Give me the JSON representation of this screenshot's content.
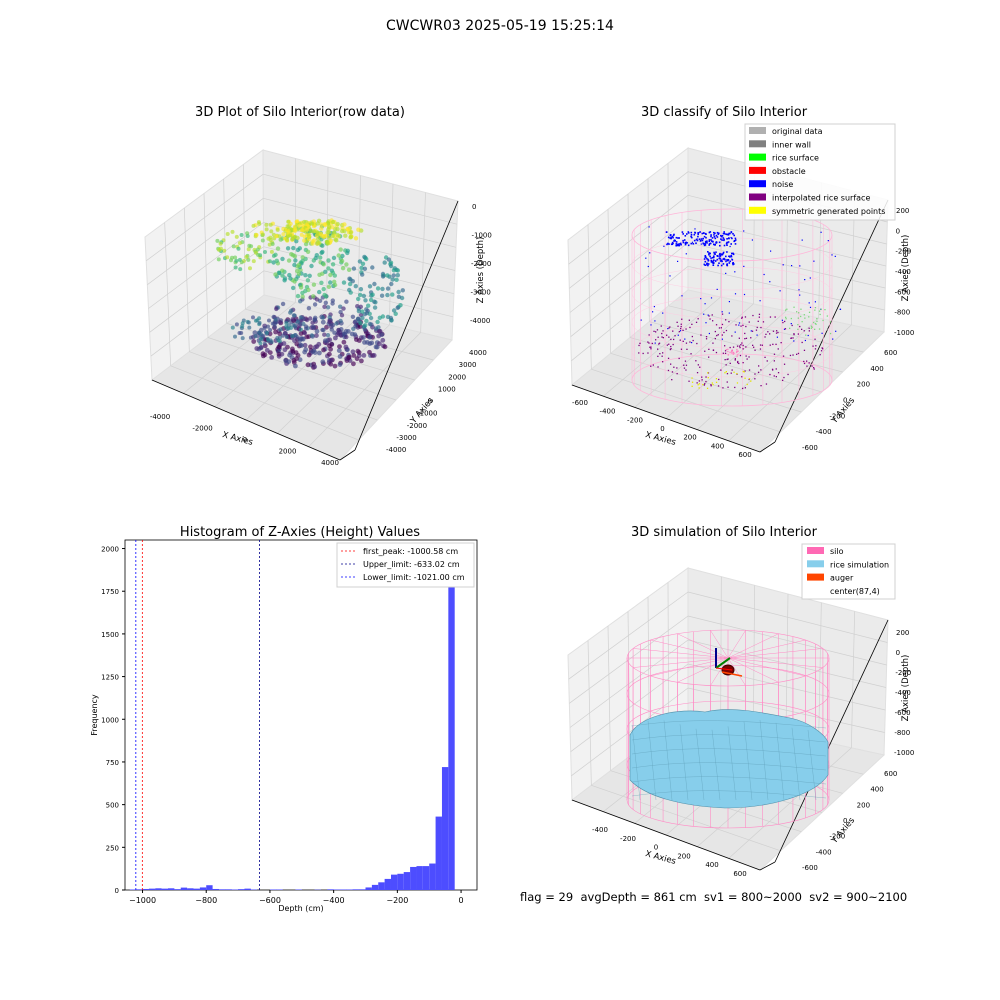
{
  "figure": {
    "suptitle": "CWCWR03 2025-05-19 15:25:14",
    "footer": "flag = 29  avgDepth = 861 cm  sv1 = 800~2000  sv2 = 900~2100"
  },
  "chart_data": [
    {
      "type": "scatter",
      "title": "3D Plot of Silo Interior(row data)",
      "xlabel": "X Axies",
      "ylabel": "Y Axies",
      "zlabel": "Z Axies (Depth)",
      "xlim": [
        -4500,
        4500
      ],
      "ylim": [
        -4500,
        4500
      ],
      "zlim": [
        -4800,
        300
      ],
      "x_ticks": [
        "-4000",
        "-2000",
        "0",
        "2000",
        "4000"
      ],
      "y_ticks": [
        "-4000",
        "-3000",
        "-2000",
        "-1000",
        "0",
        "1000",
        "2000",
        "3000",
        "4000"
      ],
      "z_ticks": [
        "0",
        "-1000",
        "-2000",
        "-3000",
        "-4000"
      ],
      "colormap": "viridis",
      "grid": true
    },
    {
      "type": "scatter",
      "title": "3D classify of Silo Interior",
      "xlabel": "X Axies",
      "ylabel": "Y Axies",
      "zlabel": "Z Axies (Depth)",
      "xlim": [
        -700,
        700
      ],
      "ylim": [
        -700,
        700
      ],
      "zlim": [
        -1100,
        250
      ],
      "x_ticks": [
        "-600",
        "-400",
        "-200",
        "0",
        "200",
        "400",
        "600"
      ],
      "y_ticks": [
        "-600",
        "-400",
        "-200",
        "0",
        "200",
        "400",
        "600"
      ],
      "z_ticks": [
        "200",
        "0",
        "-200",
        "-400",
        "-600",
        "-800",
        "-1000"
      ],
      "legend_position": "top-right",
      "legend": [
        {
          "label": "original data",
          "color": "#b0b0b0"
        },
        {
          "label": "inner wall",
          "color": "#808080"
        },
        {
          "label": "rice surface",
          "color": "#00ff00"
        },
        {
          "label": "obstacle",
          "color": "#ff0000"
        },
        {
          "label": "noise",
          "color": "#0000ff"
        },
        {
          "label": "interpolated rice surface",
          "color": "#800080"
        },
        {
          "label": "symmetric generated points",
          "color": "#ffff00"
        }
      ],
      "grid": true
    },
    {
      "type": "bar",
      "title": "Histogram of Z-Axies (Height) Values",
      "xlabel": "Depth (cm)",
      "ylabel": "Frequency",
      "xlim": [
        -1055,
        50
      ],
      "ylim": [
        0,
        2050
      ],
      "x_ticks": [
        -1000,
        -800,
        -600,
        -400,
        -200,
        0
      ],
      "y_ticks": [
        0,
        250,
        500,
        750,
        1000,
        1250,
        1500,
        1750,
        2000
      ],
      "bin_width": 20,
      "bins": [
        {
          "x": -1040,
          "y": 3
        },
        {
          "x": -1020,
          "y": 4
        },
        {
          "x": -1000,
          "y": 6
        },
        {
          "x": -980,
          "y": 8
        },
        {
          "x": -960,
          "y": 10
        },
        {
          "x": -940,
          "y": 8
        },
        {
          "x": -920,
          "y": 10
        },
        {
          "x": -900,
          "y": 5
        },
        {
          "x": -880,
          "y": 14
        },
        {
          "x": -860,
          "y": 10
        },
        {
          "x": -840,
          "y": 8
        },
        {
          "x": -820,
          "y": 15
        },
        {
          "x": -800,
          "y": 28
        },
        {
          "x": -780,
          "y": 6
        },
        {
          "x": -760,
          "y": 4
        },
        {
          "x": -740,
          "y": 4
        },
        {
          "x": -720,
          "y": 3
        },
        {
          "x": -700,
          "y": 5
        },
        {
          "x": -680,
          "y": 8
        },
        {
          "x": -660,
          "y": 3
        },
        {
          "x": -600,
          "y": 3
        },
        {
          "x": -580,
          "y": 3
        },
        {
          "x": -520,
          "y": 3
        },
        {
          "x": -460,
          "y": 2
        },
        {
          "x": -420,
          "y": 4
        },
        {
          "x": -400,
          "y": 3
        },
        {
          "x": -380,
          "y": 3
        },
        {
          "x": -360,
          "y": 3
        },
        {
          "x": -340,
          "y": 4
        },
        {
          "x": -320,
          "y": 4
        },
        {
          "x": -300,
          "y": 15
        },
        {
          "x": -280,
          "y": 30
        },
        {
          "x": -260,
          "y": 45
        },
        {
          "x": -240,
          "y": 65
        },
        {
          "x": -220,
          "y": 90
        },
        {
          "x": -200,
          "y": 95
        },
        {
          "x": -180,
          "y": 105
        },
        {
          "x": -160,
          "y": 135
        },
        {
          "x": -140,
          "y": 140
        },
        {
          "x": -120,
          "y": 140
        },
        {
          "x": -100,
          "y": 155
        },
        {
          "x": -80,
          "y": 430
        },
        {
          "x": -60,
          "y": 720
        },
        {
          "x": -40,
          "y": 1950
        }
      ],
      "lines": [
        {
          "label": "first_peak: -1000.58 cm",
          "x": -1000.58,
          "color": "#ff0000"
        },
        {
          "label": "Upper_limit: -633.02 cm",
          "x": -633.02,
          "color": "#00008b"
        },
        {
          "label": "Lower_limit: -1021.00 cm",
          "x": -1021.0,
          "color": "#0000ff"
        }
      ],
      "legend_position": "top-right"
    },
    {
      "type": "surface",
      "title": "3D simulation of Silo Interior",
      "xlabel": "X Axies",
      "ylabel": "Y Axies",
      "zlabel": "Z Axies (Depth)",
      "xlim": [
        -600,
        700
      ],
      "ylim": [
        -700,
        700
      ],
      "zlim": [
        -1100,
        300
      ],
      "x_ticks": [
        "-400",
        "-200",
        "0",
        "200",
        "400",
        "600"
      ],
      "y_ticks": [
        "-600",
        "-400",
        "-200",
        "0",
        "200",
        "400",
        "600"
      ],
      "z_ticks": [
        "200",
        "0",
        "-200",
        "-400",
        "-600",
        "-800",
        "-1000"
      ],
      "legend_position": "top-right",
      "legend": [
        {
          "label": "silo",
          "color": "#ff69b4"
        },
        {
          "label": "rice simulation",
          "color": "#87ceeb"
        },
        {
          "label": "auger",
          "color": "#ff4500"
        },
        {
          "label": "center(87,4)",
          "color": "#ffffff"
        }
      ],
      "grid": true
    }
  ]
}
